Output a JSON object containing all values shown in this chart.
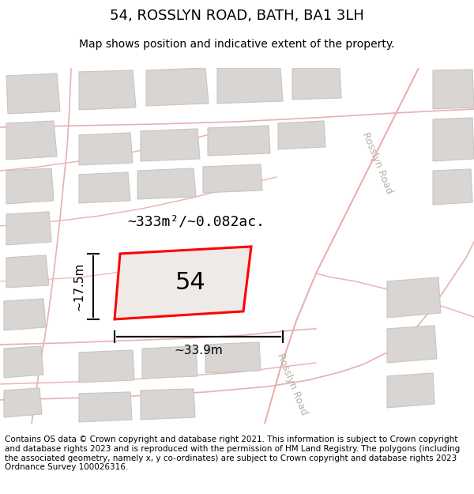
{
  "title": "54, ROSSLYN ROAD, BATH, BA1 3LH",
  "subtitle": "Map shows position and indicative extent of the property.",
  "footer": "Contains OS data © Crown copyright and database right 2021. This information is subject to Crown copyright and database rights 2023 and is reproduced with the permission of HM Land Registry. The polygons (including the associated geometry, namely x, y co-ordinates) are subject to Crown copyright and database rights 2023 Ordnance Survey 100026316.",
  "area_label": "~333m²/~0.082ac.",
  "width_label": "~33.9m",
  "height_label": "~17.5m",
  "number_label": "54",
  "map_bg": "#f2f0ee",
  "road_line_color": "#e8b0b0",
  "building_fill": "#d8d5d2",
  "building_border": "#c8c5c2",
  "highlight_fill": "#edeae8",
  "highlight_border": "#ff0000",
  "road_label_color": "#b8b0a8",
  "title_fontsize": 13,
  "subtitle_fontsize": 10,
  "footer_fontsize": 7.5
}
